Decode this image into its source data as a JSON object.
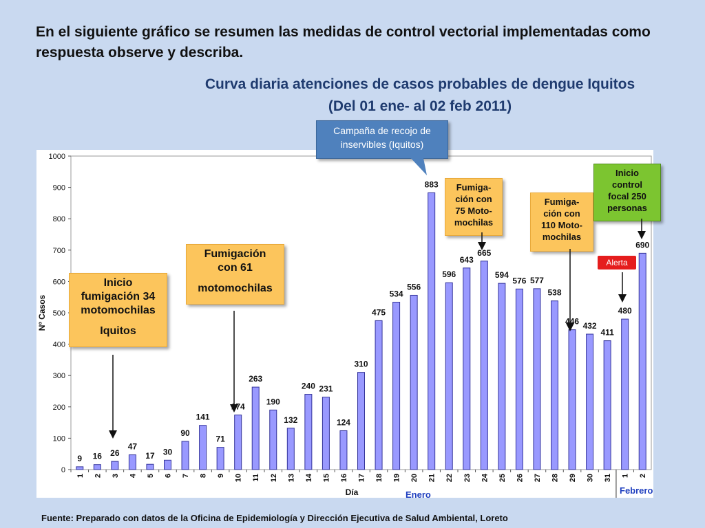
{
  "heading": "En el siguiente gráfico se resumen las medidas de control vectorial implementadas como respuesta observe y describa.",
  "chart_title": {
    "line1": "Curva diaria atenciones de casos probables de dengue Iquitos",
    "line2": "(Del 01 ene- al 02 feb 2011)"
  },
  "colors": {
    "bar": "#9999ff",
    "bar_border": "#333399",
    "month_label": "#1f3fbf",
    "background": "#c9d9f0"
  },
  "chart_data": {
    "type": "bar",
    "ylabel": "Nº Casos",
    "xlabel": "Día",
    "ylim": [
      0,
      1000
    ],
    "yticks": [
      0,
      100,
      200,
      300,
      400,
      500,
      600,
      700,
      800,
      900,
      1000
    ],
    "grid": false,
    "categories": [
      "1",
      "2",
      "3",
      "4",
      "5",
      "6",
      "7",
      "8",
      "9",
      "10",
      "11",
      "12",
      "13",
      "14",
      "15",
      "16",
      "17",
      "18",
      "19",
      "20",
      "21",
      "22",
      "23",
      "24",
      "25",
      "26",
      "27",
      "28",
      "29",
      "30",
      "31",
      "1",
      "2"
    ],
    "values": [
      9,
      16,
      26,
      47,
      17,
      30,
      90,
      141,
      71,
      174,
      263,
      190,
      132,
      240,
      231,
      124,
      310,
      475,
      534,
      556,
      883,
      596,
      643,
      665,
      594,
      576,
      577,
      538,
      446,
      432,
      411,
      480,
      690
    ],
    "months": [
      "Enero",
      "Febrero"
    ]
  },
  "callouts": {
    "fum34": {
      "l1": "Inicio",
      "l2": "fumigación 34",
      "l3": "motomochilas",
      "l4": "Iquitos"
    },
    "fum61": {
      "l1": "Fumigación",
      "l2": "con 61",
      "l3": "motomochilas"
    },
    "campana": {
      "l1": "Campaña de recojo de",
      "l2": "inservibles (Iquitos)"
    },
    "fum75": {
      "l1": "Fumiga-",
      "l2": "ción con",
      "l3": "75 Moto-",
      "l4": "mochilas"
    },
    "fum110": {
      "l1": "Fumiga-",
      "l2": "ción con",
      "l3": "110 Moto-",
      "l4": "mochilas"
    },
    "control": {
      "l1": "Inicio",
      "l2": "control",
      "l3": "focal 250",
      "l4": "personas"
    },
    "alerta": "Alerta"
  },
  "source": "Fuente: Preparado con datos de la Oficina de Epidemiología y Dirección Ejecutiva de Salud Ambiental, Loreto"
}
